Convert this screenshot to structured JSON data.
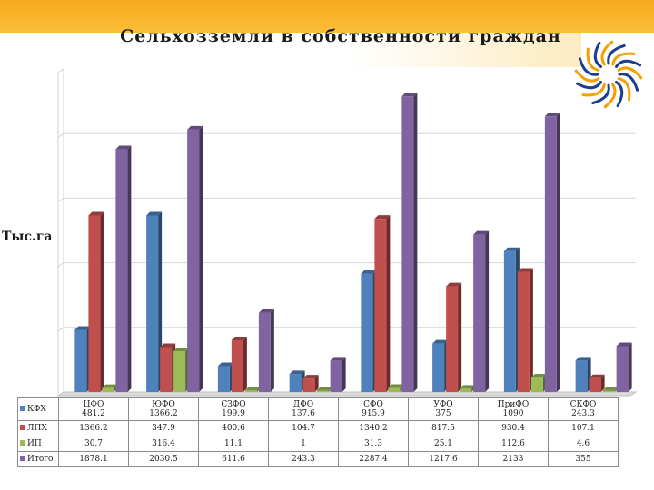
{
  "title": "Сельхозземли в собственности граждан",
  "ylabel": "Тыс.га",
  "colors": {
    "top_band": "#f7a81b",
    "logo_blue": "#1d3f8a",
    "logo_orange": "#f5a000"
  },
  "chart_data": {
    "type": "bar",
    "title": "Сельхозземли в собственности граждан",
    "ylabel": "Тыс.га",
    "xlabel": "",
    "categories": [
      "ЦФО",
      "ЮФО",
      "СЗФО",
      "ДФО",
      "СФО",
      "УФО",
      "ПриФО",
      "СКФО"
    ],
    "series": [
      {
        "name": "КФХ",
        "color": "#4f81bd",
        "values": [
          481.2,
          1366.2,
          199.9,
          137.6,
          915.9,
          375,
          1090,
          243.3
        ]
      },
      {
        "name": "ЛПХ",
        "color": "#c0504d",
        "values": [
          1366.2,
          347.9,
          400.6,
          104.7,
          1340.2,
          817.5,
          930.4,
          107.1
        ]
      },
      {
        "name": "ИП",
        "color": "#9bbb59",
        "values": [
          30.7,
          316.4,
          11.1,
          1,
          31.3,
          25.1,
          112.6,
          4.6
        ]
      },
      {
        "name": "Итого",
        "color": "#8064a2",
        "values": [
          1878.1,
          2030.5,
          611.6,
          243.3,
          2287.4,
          1217.6,
          2133,
          355
        ]
      }
    ],
    "ylim": [
      0,
      2500
    ],
    "grid": true,
    "legend": "data table below chart"
  }
}
